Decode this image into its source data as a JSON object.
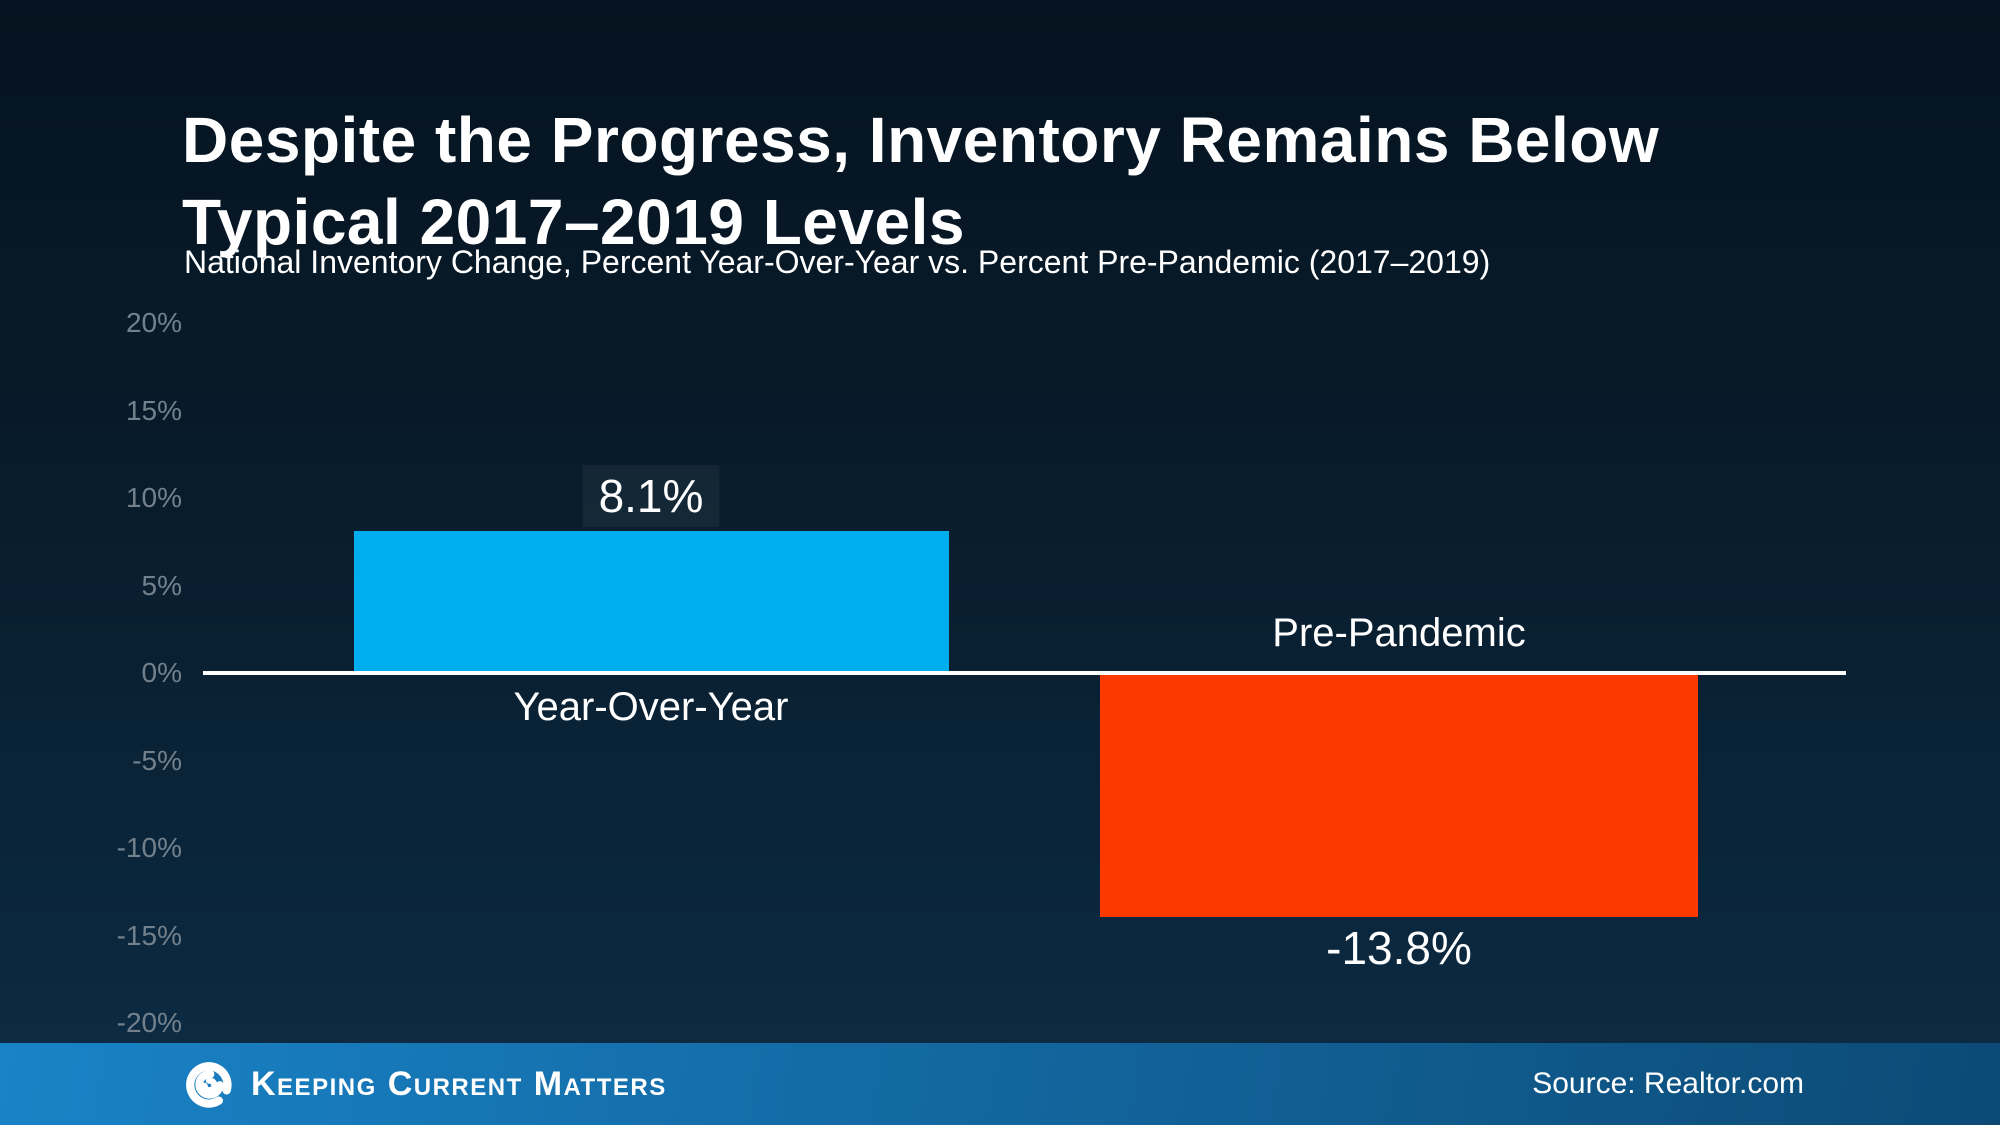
{
  "slide": {
    "title_line1": "Despite the Progress, Inventory Remains Below",
    "title_line2": "Typical 2017–2019 Levels",
    "subtitle": "National Inventory Change, Percent Year-Over-Year vs. Percent Pre-Pandemic (2017–2019)"
  },
  "chart_data": {
    "type": "bar",
    "title": "Despite the Progress, Inventory Remains Below Typical 2017–2019 Levels",
    "subtitle": "National Inventory Change, Percent Year-Over-Year vs. Percent Pre-Pandemic (2017–2019)",
    "categories": [
      "Year-Over-Year",
      "Pre-Pandemic"
    ],
    "values": [
      8.1,
      -13.8
    ],
    "value_labels": [
      "8.1%",
      "-13.8%"
    ],
    "bar_colors": [
      "#00AEEF",
      "#FC3A00"
    ],
    "xlabel": "",
    "ylabel": "",
    "ylim": [
      -20,
      20
    ],
    "ytick_step": 5,
    "ytick_labels": [
      "20%",
      "15%",
      "10%",
      "5%",
      "0%",
      "-5%",
      "-10%",
      "-15%",
      "-20%"
    ],
    "grid": false,
    "legend_position": "none",
    "baseline_color": "#FFFFFF"
  },
  "footer": {
    "brand": "Keeping Current Matters",
    "logo": "kcm-swirl-icon",
    "source": "Source: Realtor.com",
    "bar_gradient": [
      "#1983C7",
      "#0C4A76"
    ]
  },
  "colors": {
    "background_top": "#061320",
    "background_bottom": "#0C2C45",
    "title_text": "#FFFFFF",
    "axis_label_text": "#73818C",
    "bar_positive": "#00AEEF",
    "bar_negative": "#FC3A00",
    "zero_line": "#FFFFFF"
  }
}
